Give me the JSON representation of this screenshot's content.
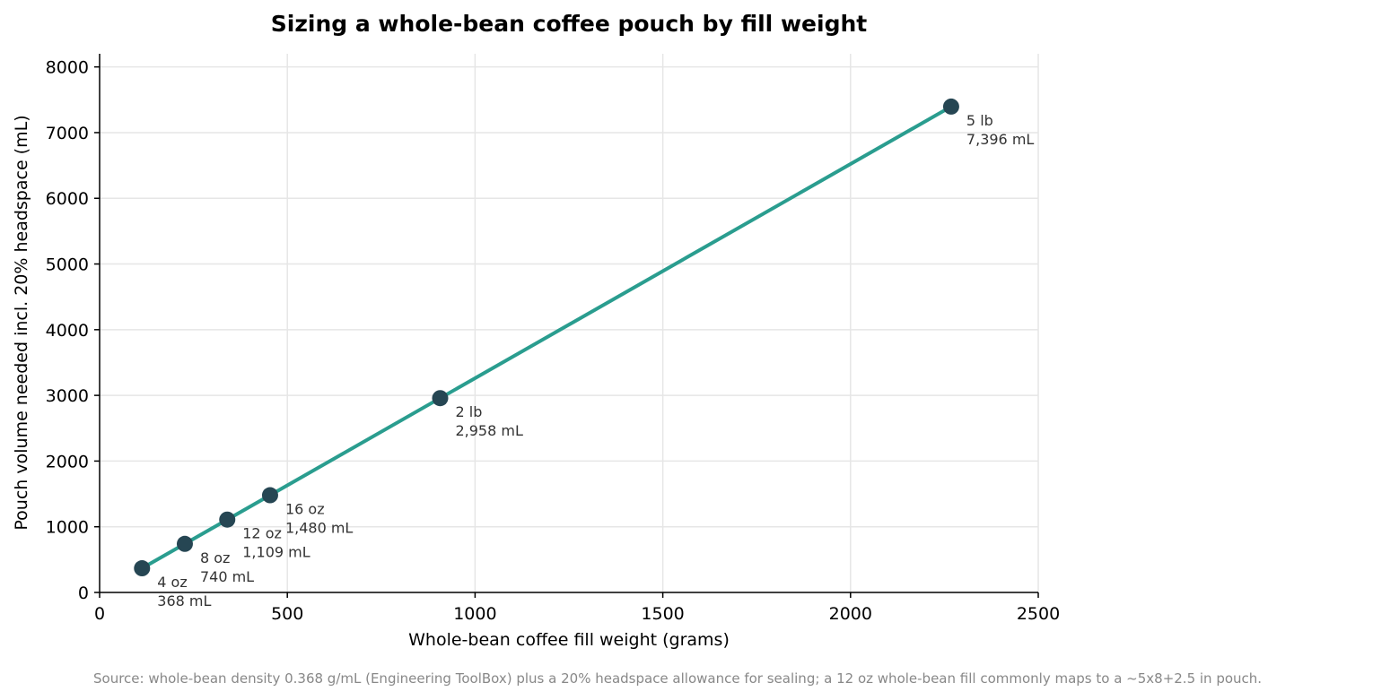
{
  "chart_data": {
    "type": "line",
    "title": "Sizing a whole-bean coffee pouch by fill weight",
    "xlabel": "Whole-bean coffee fill weight (grams)",
    "ylabel": "Pouch volume needed incl. 20% headspace (mL)",
    "xlim": [
      0,
      2500
    ],
    "ylim": [
      0,
      8200
    ],
    "xticks": [
      0,
      500,
      1000,
      1500,
      2000,
      2500
    ],
    "yticks": [
      0,
      1000,
      2000,
      3000,
      4000,
      5000,
      6000,
      7000,
      8000
    ],
    "grid": true,
    "series": [
      {
        "points": [
          {
            "x": 113,
            "y": 368,
            "label": "4 oz",
            "value_label": "368 mL"
          },
          {
            "x": 227,
            "y": 740,
            "label": "8 oz",
            "value_label": "740 mL"
          },
          {
            "x": 340,
            "y": 1109,
            "label": "12 oz",
            "value_label": "1,109 mL"
          },
          {
            "x": 454,
            "y": 1480,
            "label": "16 oz",
            "value_label": "1,480 mL"
          },
          {
            "x": 907,
            "y": 2958,
            "label": "2 lb",
            "value_label": "2,958 mL"
          },
          {
            "x": 2268,
            "y": 7396,
            "label": "5 lb",
            "value_label": "7,396 mL"
          }
        ]
      }
    ],
    "colors": {
      "line": "#2a9d8f",
      "marker": "#264653"
    },
    "source": "Source: whole-bean density 0.368 g/mL (Engineering ToolBox) plus a 20% headspace allowance for sealing; a 12 oz whole-bean fill commonly maps to a ~5x8+2.5 in pouch."
  }
}
